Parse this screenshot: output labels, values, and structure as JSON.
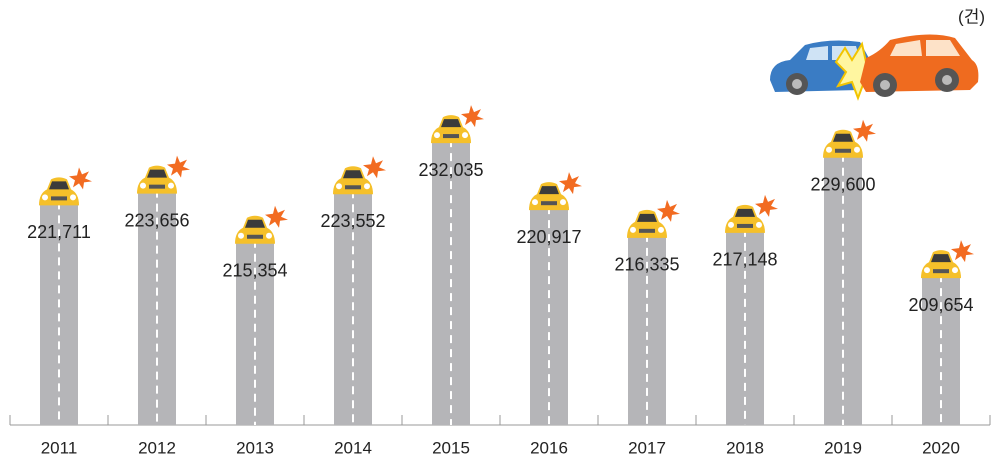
{
  "chart_data": {
    "type": "bar",
    "unit_label": "(건)",
    "categories": [
      "2011",
      "2012",
      "2013",
      "2014",
      "2015",
      "2016",
      "2017",
      "2018",
      "2019",
      "2020"
    ],
    "values": [
      221711,
      223656,
      215354,
      223552,
      232035,
      220917,
      216335,
      217148,
      229600,
      209654
    ],
    "value_labels": [
      "221,711",
      "223,656",
      "215,354",
      "223,552",
      "232,035",
      "220,917",
      "216,335",
      "217,148",
      "229,600",
      "209,654"
    ],
    "color": "#b5b5b8",
    "ylim": [
      184000,
      240000
    ]
  }
}
